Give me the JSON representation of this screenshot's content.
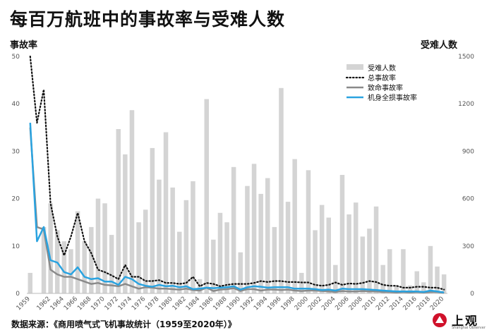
{
  "title": "每百万航班中的事故率与受难人数",
  "left_axis_label": "事故率",
  "right_axis_label": "受难人数",
  "source": "数据来源：《商用喷气式飞机事故统计（1959至2020年）》",
  "logo": {
    "text": "上观",
    "sub": "Shanghai Observer"
  },
  "colors": {
    "bars": "#d4d4d4",
    "total": "#111111",
    "fatal": "#8a8a8a",
    "hull": "#2aa3e0"
  },
  "chart_data": {
    "type": "bar",
    "x": [
      1959,
      1960,
      1961,
      1962,
      1963,
      1964,
      1965,
      1966,
      1967,
      1968,
      1969,
      1970,
      1971,
      1972,
      1973,
      1974,
      1975,
      1976,
      1977,
      1978,
      1979,
      1980,
      1981,
      1982,
      1983,
      1984,
      1985,
      1986,
      1987,
      1988,
      1989,
      1990,
      1991,
      1992,
      1993,
      1994,
      1995,
      1996,
      1997,
      1998,
      1999,
      2000,
      2001,
      2002,
      2003,
      2004,
      2005,
      2006,
      2007,
      2008,
      2009,
      2010,
      2011,
      2012,
      2013,
      2014,
      2015,
      2016,
      2017,
      2018,
      2019,
      2020
    ],
    "x_tick_labels": [
      "1959",
      "1962",
      "1964",
      "1966",
      "1968",
      "1970",
      "1972",
      "1974",
      "1976",
      "1978",
      "1980",
      "1982",
      "1984",
      "1986",
      "1988",
      "1990",
      "1992",
      "1994",
      "1996",
      "1998",
      "2000",
      "2002",
      "2004",
      "2006",
      "2008",
      "2010",
      "2012",
      "2014",
      "2016",
      "2018",
      "2020"
    ],
    "yleft_ticks": [
      0,
      10,
      20,
      30,
      40,
      50
    ],
    "yright_ticks": [
      0,
      300,
      600,
      900,
      1200,
      1500
    ],
    "yleft_lim": [
      0,
      50
    ],
    "yright_lim": [
      0,
      1500
    ],
    "legend": [
      "受难人数",
      "总事故率",
      "致命事故率",
      "机身全损事故率"
    ],
    "series": [
      {
        "name": "受难人数",
        "axis": "right",
        "kind": "bar",
        "values": [
          130,
          0,
          420,
          570,
          400,
          330,
          280,
          520,
          330,
          420,
          600,
          570,
          370,
          1040,
          880,
          1160,
          450,
          530,
          920,
          720,
          1020,
          670,
          390,
          590,
          710,
          90,
          1230,
          340,
          510,
          450,
          800,
          260,
          680,
          820,
          630,
          730,
          420,
          1300,
          580,
          850,
          130,
          780,
          400,
          560,
          480,
          180,
          750,
          500,
          575,
          360,
          410,
          550,
          180,
          280,
          50,
          280,
          50,
          140,
          70,
          300,
          170,
          120
        ]
      },
      {
        "name": "总事故率",
        "axis": "left",
        "kind": "line",
        "values": [
          50,
          36,
          43,
          19,
          12,
          8,
          12,
          17,
          11,
          8.5,
          5,
          4.5,
          3.8,
          3,
          6,
          3.5,
          3.5,
          2.6,
          2.6,
          2.8,
          2.2,
          2.2,
          2,
          2.2,
          3.5,
          1.5,
          2.2,
          2,
          1.5,
          1.8,
          2,
          2,
          2,
          2.2,
          2.6,
          2.4,
          2.6,
          2.6,
          2.4,
          2.4,
          2.3,
          2.3,
          1.8,
          1.6,
          1.8,
          2.3,
          1.8,
          2.1,
          2,
          2.2,
          2.6,
          2.4,
          1.8,
          1.6,
          1.6,
          1.2,
          1.2,
          1.4,
          1.4,
          1.2,
          1.2,
          0.8
        ]
      },
      {
        "name": "致命事故率",
        "axis": "left",
        "kind": "line",
        "values": [
          35,
          14,
          13.5,
          5,
          4,
          3.5,
          3.5,
          3,
          2.5,
          2,
          2.2,
          1.8,
          1.7,
          1.5,
          2,
          1.5,
          1,
          1.3,
          1.2,
          1,
          1,
          0.9,
          0.8,
          1,
          0.7,
          0.6,
          1.2,
          0.5,
          0.8,
          0.9,
          1.1,
          0.5,
          0.9,
          0.9,
          0.6,
          0.8,
          0.8,
          0.7,
          0.8,
          0.6,
          0.5,
          0.6,
          0.6,
          0.5,
          0.4,
          0.3,
          0.5,
          0.4,
          0.4,
          0.5,
          0.4,
          0.4,
          0.3,
          0.3,
          0.2,
          0.3,
          0.2,
          0.3,
          0.2,
          0.3,
          0.3,
          0.1
        ]
      },
      {
        "name": "机身全损事故率",
        "axis": "left",
        "kind": "line",
        "values": [
          36,
          11,
          14,
          7,
          6.5,
          4.5,
          4,
          5.5,
          3.5,
          3,
          3.2,
          2.5,
          2.5,
          1.8,
          3.5,
          3,
          2,
          1.6,
          1.4,
          1.8,
          1.5,
          1.6,
          1.3,
          1.5,
          0.9,
          1,
          1.2,
          1.1,
          1.2,
          1.3,
          1.5,
          0.8,
          1.3,
          1.5,
          1.4,
          1.2,
          1.3,
          1.3,
          1.3,
          1,
          1,
          1,
          0.9,
          0.7,
          0.8,
          0.6,
          1,
          0.9,
          0.9,
          0.9,
          0.8,
          0.7,
          0.6,
          0.5,
          0.4,
          0.4,
          0.4,
          0.4,
          0.3,
          0.6,
          0.4,
          0.2
        ]
      }
    ]
  }
}
